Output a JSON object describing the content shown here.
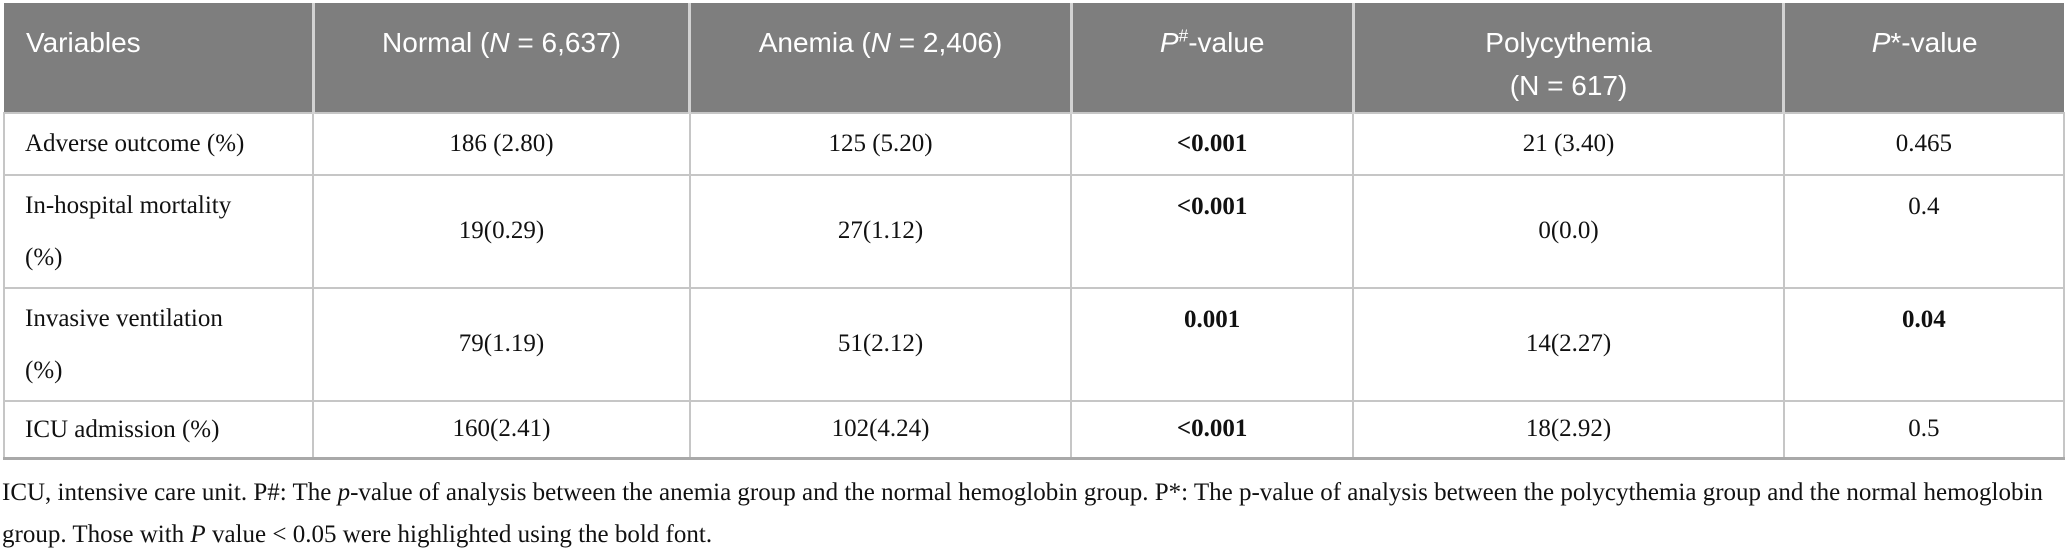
{
  "colors": {
    "header-bg": "#7e7e7e",
    "header-text": "#ffffff",
    "body-text": "#111111",
    "grid-border": "#c6c6c6",
    "header-separator": "#d2d2d2",
    "table-bottom-border": "#a9a9a9"
  },
  "header": {
    "variables": "Variables",
    "normal": {
      "prefix": "Normal (",
      "n": "N",
      "suffix": " = 6,637)"
    },
    "anemia": {
      "prefix": "Anemia (",
      "n": "N",
      "suffix": " = 2,406)"
    },
    "p_hash": {
      "p": "P",
      "sup": "#",
      "suffix": "-value"
    },
    "polycythemia": {
      "line1": "Polycythemia",
      "line2": "(N = 617)"
    },
    "p_star": {
      "p": "P",
      "suffix": "*-value"
    }
  },
  "rows": [
    {
      "label": "Adverse outcome (%)",
      "normal": "186 (2.80)",
      "anemia": "125 (5.20)",
      "p_hash": "<0.001",
      "p_hash_bold": true,
      "polycythemia": "21 (3.40)",
      "p_star": "0.465",
      "p_star_bold": false
    },
    {
      "label": "In-hospital mortality (%)",
      "normal": "19(0.29)",
      "anemia": "27(1.12)",
      "p_hash": "<0.001",
      "p_hash_bold": true,
      "polycythemia": "0(0.0)",
      "p_star": "0.4",
      "p_star_bold": false
    },
    {
      "label": "Invasive ventilation (%)",
      "normal": "79(1.19)",
      "anemia": "51(2.12)",
      "p_hash": "0.001",
      "p_hash_bold": true,
      "polycythemia": "14(2.27)",
      "p_star": "0.04",
      "p_star_bold": true
    },
    {
      "label": "ICU admission (%)",
      "normal": "160(2.41)",
      "anemia": "102(4.24)",
      "p_hash": "<0.001",
      "p_hash_bold": true,
      "polycythemia": "18(2.92)",
      "p_star": "0.5",
      "p_star_bold": false
    }
  ],
  "footnote": {
    "s1": "ICU, intensive care unit. P#: The ",
    "i1": "p",
    "s2": "-value of analysis between the anemia group and the normal hemoglobin group. P*: The p-value of analysis between the polycythemia group and the normal hemoglobin group. Those with ",
    "i2": "P",
    "s3": " value < 0.05 were highlighted using the bold font."
  }
}
